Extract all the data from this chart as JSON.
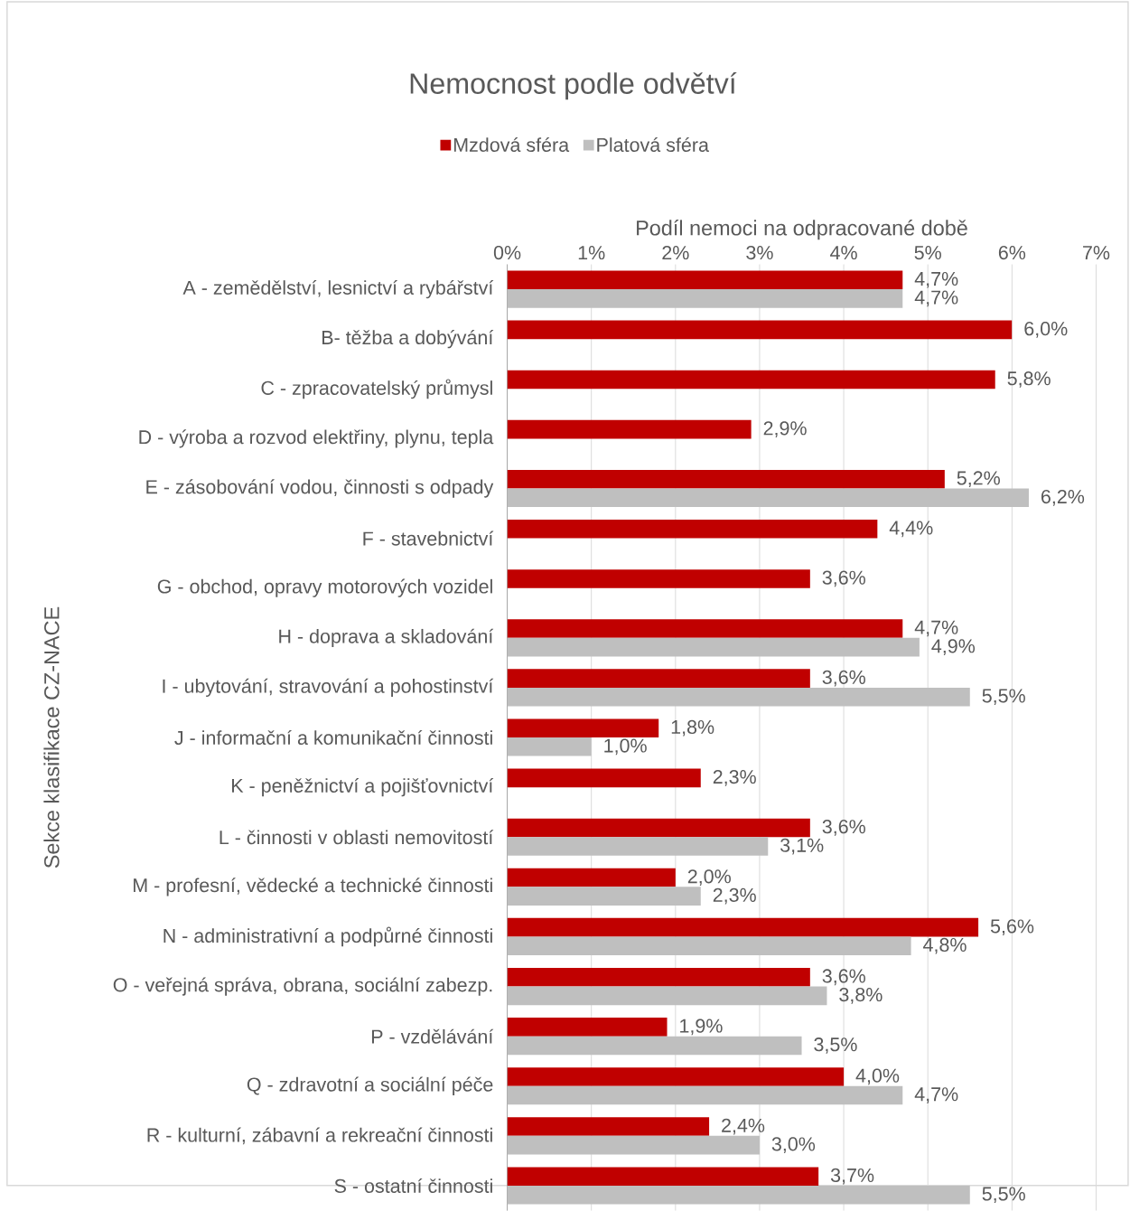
{
  "chart_data": {
    "type": "bar",
    "orientation": "horizontal",
    "title": "Nemocnost podle odvětví",
    "xlabel": "Podíl nemoci na odpracované době",
    "ylabel": "Sekce klasifikace CZ-NACE",
    "categories": [
      "A - zemědělství, lesnictví a rybářství",
      "B- těžba a dobývání",
      "C - zpracovatelský průmysl",
      "D - výroba a rozvod elektřiny, plynu, tepla",
      "E - zásobování vodou, činnosti s odpady",
      "F - stavebnictví",
      "G - obchod, opravy motorových vozidel",
      "H - doprava a skladování",
      "I - ubytování, stravování a pohostinství",
      "J - informační a komunikační činnosti",
      "K - peněžnictví a pojišťovnictví",
      "L - činnosti v oblasti nemovitostí",
      "M - profesní, vědecké a technické činnosti",
      "N - administrativní a podpůrné činnosti",
      "O - veřejná správa, obrana, sociální zabezp.",
      "P - vzdělávání",
      "Q - zdravotní a sociální péče",
      "R - kulturní, zábavní a rekreační činnosti",
      "S - ostatní činnosti"
    ],
    "series": [
      {
        "name": "Mzdová sféra",
        "color": "#c00000",
        "values": [
          4.7,
          6.0,
          5.8,
          2.9,
          5.2,
          4.4,
          3.6,
          4.7,
          3.6,
          1.8,
          2.3,
          3.6,
          2.0,
          5.6,
          3.6,
          1.9,
          4.0,
          2.4,
          3.7
        ],
        "value_labels": [
          "4,7%",
          "6,0%",
          "5,8%",
          "2,9%",
          "5,2%",
          "4,4%",
          "3,6%",
          "4,7%",
          "3,6%",
          "1,8%",
          "2,3%",
          "3,6%",
          "2,0%",
          "5,6%",
          "3,6%",
          "1,9%",
          "4,0%",
          "2,4%",
          "3,7%"
        ]
      },
      {
        "name": "Platová sféra",
        "color": "#bfbfbf",
        "values": [
          4.7,
          null,
          null,
          null,
          6.2,
          null,
          null,
          4.9,
          5.5,
          1.0,
          null,
          3.1,
          2.3,
          4.8,
          3.8,
          3.5,
          4.7,
          3.0,
          5.5
        ],
        "value_labels": [
          "4,7%",
          null,
          null,
          null,
          "6,2%",
          null,
          null,
          "4,9%",
          "5,5%",
          "1,0%",
          null,
          "3,1%",
          "2,3%",
          "4,8%",
          "3,8%",
          "3,5%",
          "4,7%",
          "3,0%",
          "5,5%"
        ]
      }
    ],
    "xlim": [
      0,
      7
    ],
    "xticks": [
      {
        "value": 0,
        "label": "0%"
      },
      {
        "value": 1,
        "label": "1%"
      },
      {
        "value": 2,
        "label": "2%"
      },
      {
        "value": 3,
        "label": "3%"
      },
      {
        "value": 4,
        "label": "4%"
      },
      {
        "value": 5,
        "label": "5%"
      },
      {
        "value": 6,
        "label": "6%"
      },
      {
        "value": 7,
        "label": "7%"
      }
    ],
    "grid": "x",
    "legend": "top"
  }
}
